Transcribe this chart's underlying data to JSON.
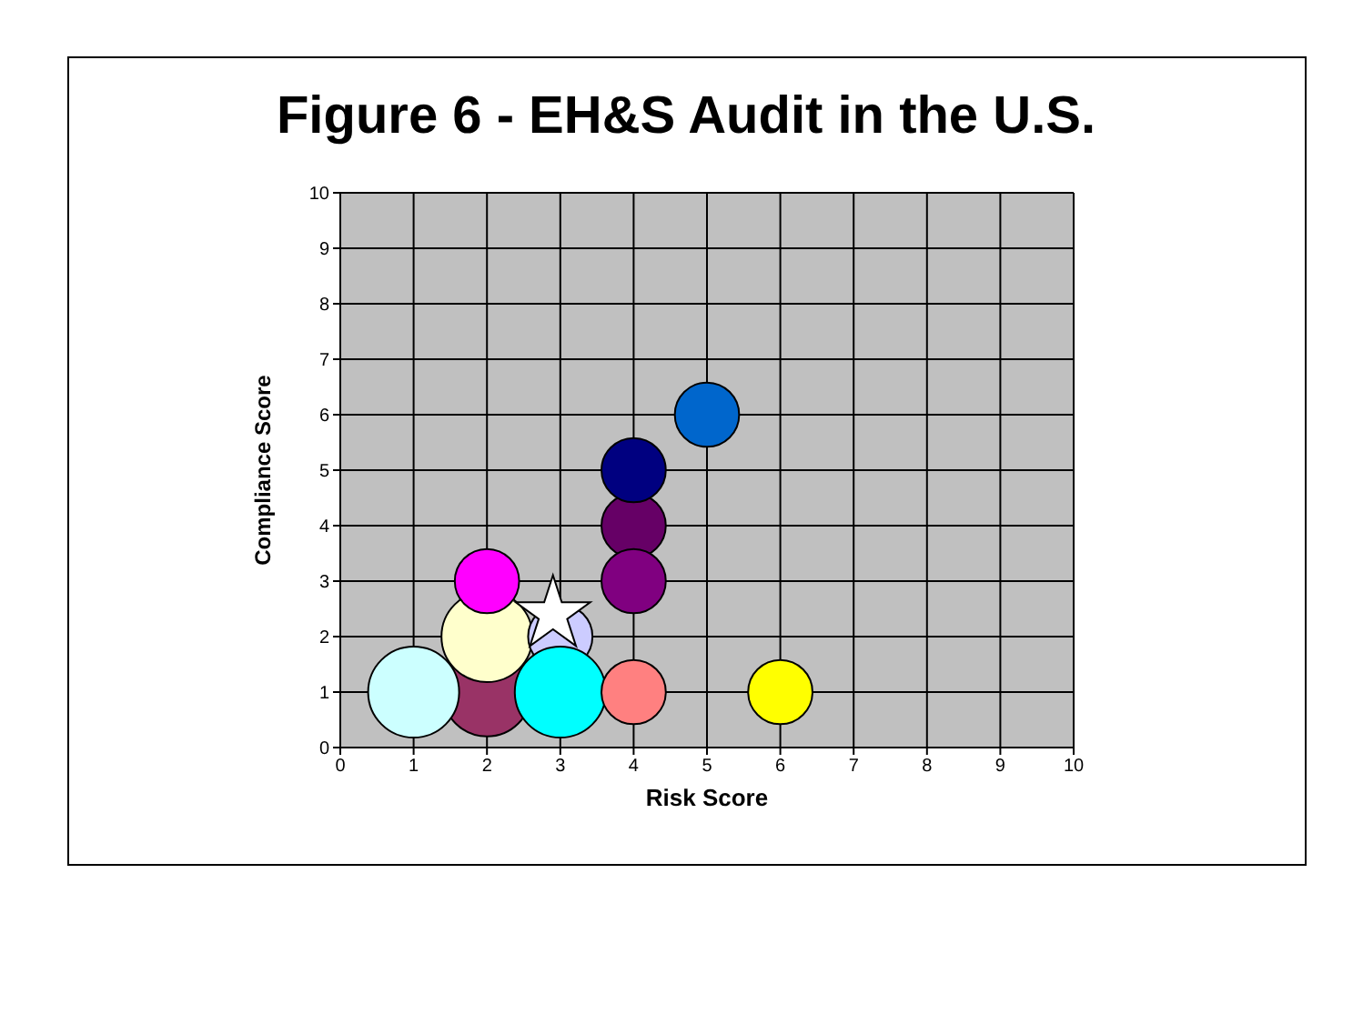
{
  "chart_data": {
    "type": "bubble",
    "title": "Figure 6 - EH&S Audit in the U.S.",
    "xlabel": "Risk Score",
    "ylabel": "Compliance Score",
    "xlim": [
      0,
      10
    ],
    "ylim": [
      0,
      10
    ],
    "xticks": [
      0,
      1,
      2,
      3,
      4,
      5,
      6,
      7,
      8,
      9,
      10
    ],
    "yticks": [
      0,
      1,
      2,
      3,
      4,
      5,
      6,
      7,
      8,
      9,
      10
    ],
    "grid": true,
    "legend": false,
    "series": [
      {
        "x": [
          2,
          1,
          2,
          2,
          3,
          3,
          4,
          4,
          4,
          4,
          5,
          6
        ],
        "values": [
          1,
          1,
          2,
          3,
          2,
          1,
          1,
          4,
          3,
          5,
          6,
          1
        ],
        "sizes": [
          0.95,
          1,
          1,
          0.5,
          0.5,
          1,
          0.5,
          0.5,
          0.5,
          0.5,
          0.5,
          0.5
        ],
        "colors": [
          "#993366",
          "#ccffff",
          "#ffffcc",
          "#ff00ff",
          "#ccccff",
          "#00ffff",
          "#ff8080",
          "#660066",
          "#800080",
          "#000080",
          "#0066cc",
          "#ffff00"
        ]
      },
      {
        "type": "scatter",
        "x": [
          2.9
        ],
        "values": [
          2.4
        ],
        "color": "#ffffff",
        "marker": "star"
      }
    ]
  }
}
